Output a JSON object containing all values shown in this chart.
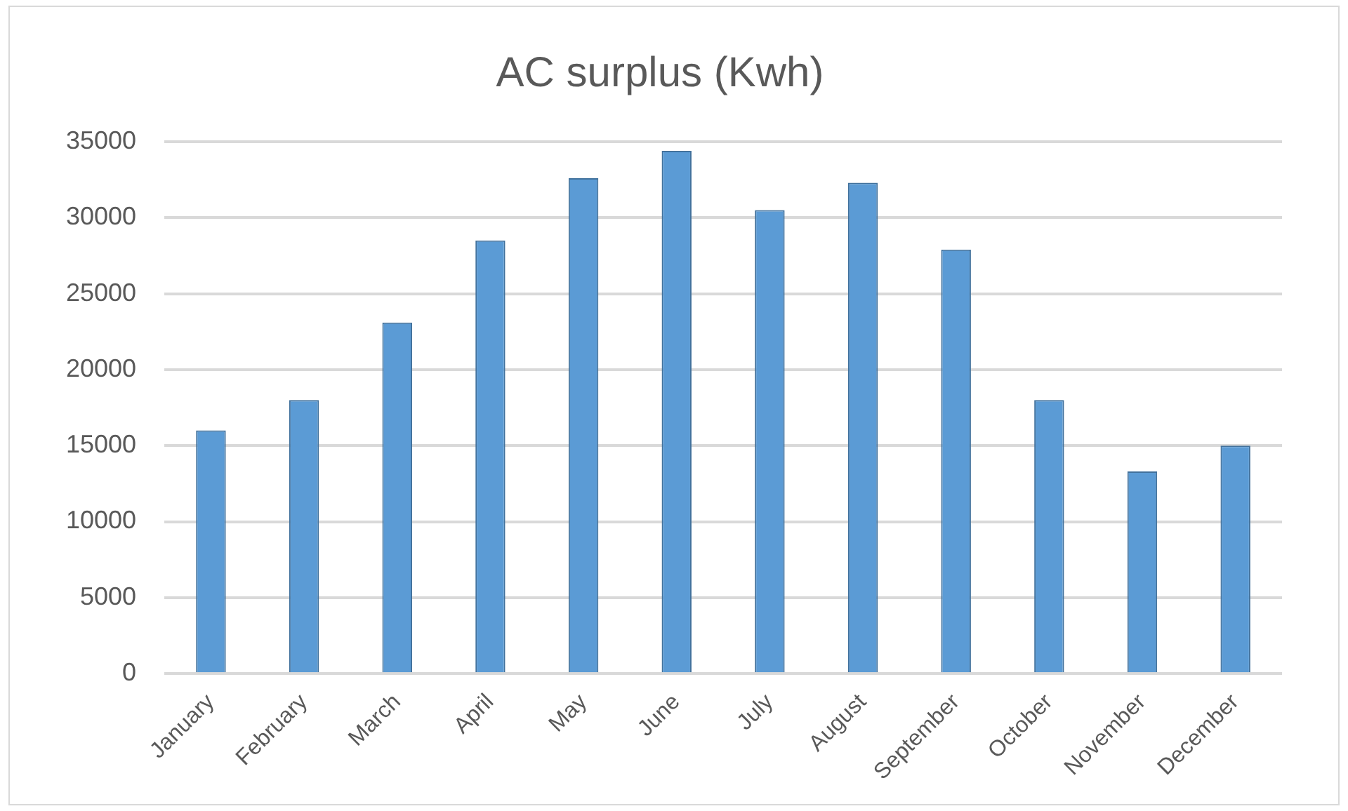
{
  "chart_data": {
    "type": "bar",
    "title": "AC surplus (Kwh)",
    "categories": [
      "January",
      "February",
      "March",
      "April",
      "May",
      "June",
      "July",
      "August",
      "September",
      "October",
      "November",
      "December"
    ],
    "values": [
      16000,
      18000,
      23100,
      28500,
      32600,
      34400,
      30500,
      32300,
      27900,
      18000,
      13300,
      15000
    ],
    "color": "#5b9bd5",
    "ylim": [
      0,
      35000
    ],
    "yticks": [
      0,
      5000,
      10000,
      15000,
      20000,
      25000,
      30000,
      35000
    ],
    "grid": "y",
    "legend": false
  }
}
